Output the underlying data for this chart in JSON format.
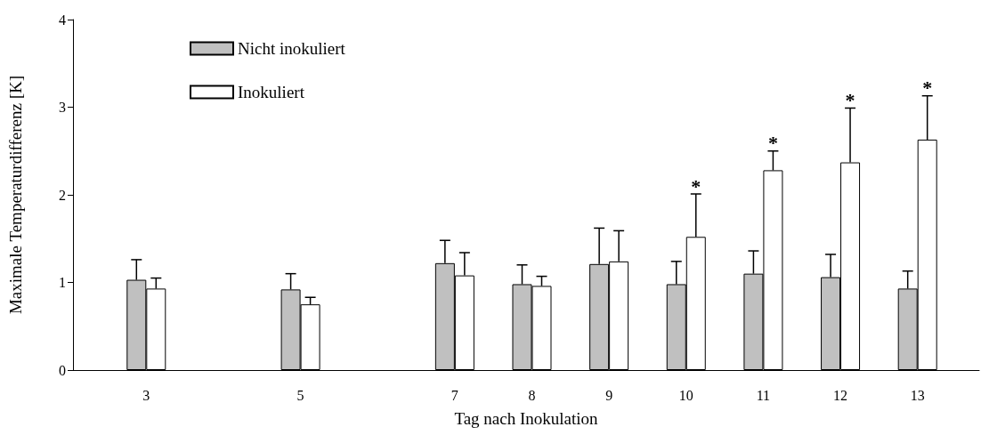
{
  "chart_data": {
    "type": "bar",
    "xlabel": "Tag nach Inokulation",
    "ylabel": "Maximale Temperaturdifferenz [K]",
    "x": [
      3,
      5,
      7,
      8,
      9,
      10,
      11,
      12,
      13
    ],
    "xlim": [
      2.05,
      13.8
    ],
    "xticks": [
      3,
      5,
      7,
      8,
      9,
      10,
      11,
      12,
      13
    ],
    "ylim": [
      0,
      4
    ],
    "yticks": [
      0,
      1,
      2,
      3,
      4
    ],
    "grid": false,
    "legend": "top left",
    "series": [
      {
        "name": "Nicht inokuliert",
        "color": "#c0c0c0",
        "values": [
          1.03,
          0.92,
          1.22,
          0.98,
          1.21,
          0.98,
          1.1,
          1.06,
          0.93
        ],
        "errors": [
          [
            1.03,
            1.26
          ],
          [
            0.92,
            1.1
          ],
          [
            1.22,
            1.48
          ],
          [
            0.98,
            1.2
          ],
          [
            1.21,
            1.62
          ],
          [
            0.98,
            1.24
          ],
          [
            1.1,
            1.36
          ],
          [
            1.06,
            1.32
          ],
          [
            0.93,
            1.13
          ]
        ]
      },
      {
        "name": "Inokuliert",
        "color": "#ffffff",
        "values": [
          0.93,
          0.75,
          1.08,
          0.96,
          1.24,
          1.52,
          2.28,
          2.37,
          2.63
        ],
        "errors": [
          [
            0.93,
            1.05
          ],
          [
            0.75,
            0.83
          ],
          [
            1.08,
            1.34
          ],
          [
            0.96,
            1.07
          ],
          [
            1.24,
            1.59
          ],
          [
            1.52,
            2.01
          ],
          [
            2.28,
            2.5
          ],
          [
            2.37,
            2.99
          ],
          [
            2.63,
            3.13
          ]
        ]
      }
    ],
    "annotations": [
      {
        "text": "*",
        "x": 10,
        "y": 1.52
      },
      {
        "text": "*",
        "x": 11,
        "y": 2.28
      },
      {
        "text": "*",
        "x": 12,
        "y": 2.37
      },
      {
        "text": "*",
        "x": 13,
        "y": 2.63
      }
    ]
  }
}
